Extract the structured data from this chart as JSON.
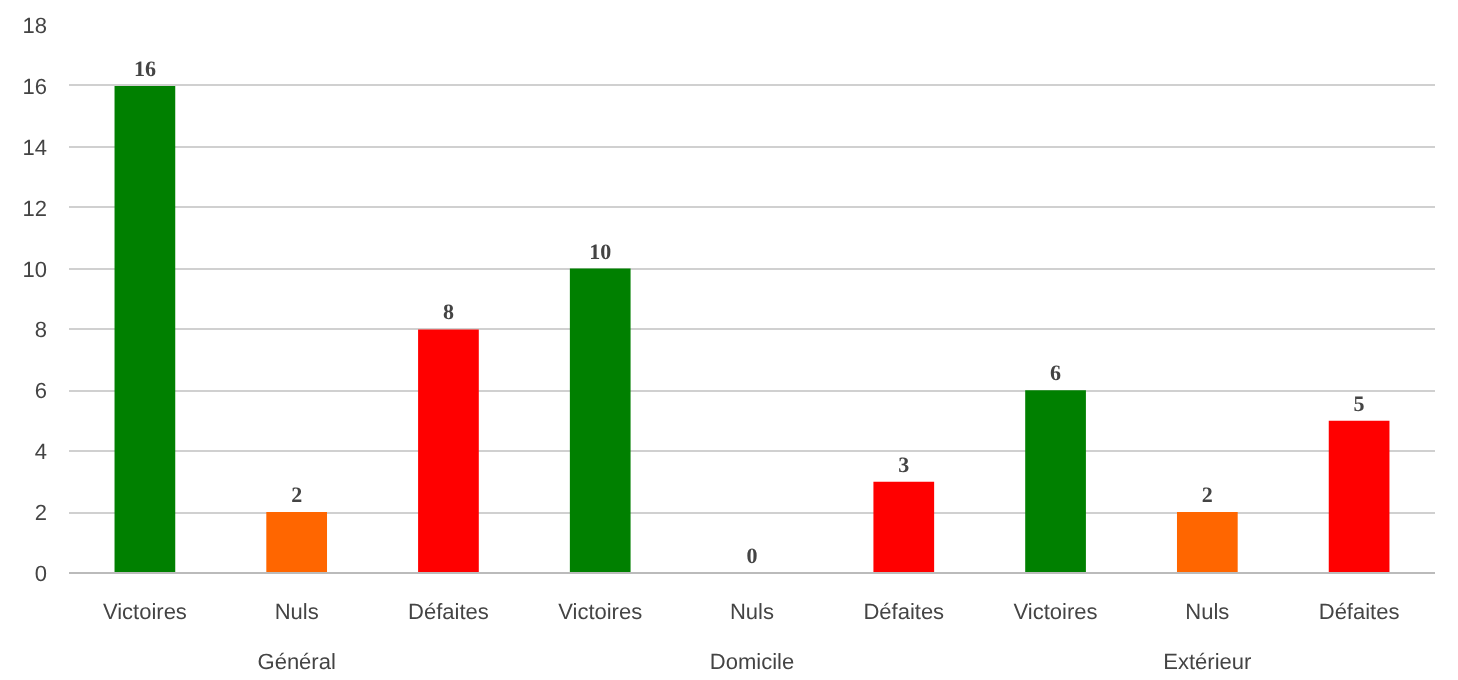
{
  "chart_data": {
    "type": "bar",
    "categories": [
      "Victoires",
      "Nuls",
      "Défaites",
      "Victoires",
      "Nuls",
      "Défaites",
      "Victoires",
      "Nuls",
      "Défaites"
    ],
    "values": [
      16,
      2,
      8,
      10,
      0,
      3,
      6,
      2,
      5
    ],
    "colors": [
      "#008000",
      "#ff6600",
      "#ff0000",
      "#008000",
      "#ff6600",
      "#ff0000",
      "#008000",
      "#ff6600",
      "#ff0000"
    ],
    "annotations": [
      "Général",
      "Domicile",
      "Extérieur"
    ],
    "ylim": [
      0,
      18
    ],
    "yticks": [
      0,
      2,
      4,
      6,
      8,
      10,
      12,
      14,
      16,
      18
    ],
    "grid": "y",
    "data_labels": true
  }
}
